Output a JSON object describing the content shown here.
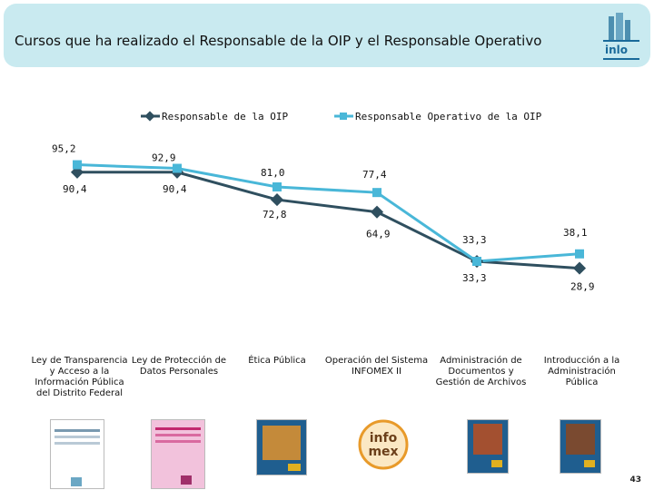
{
  "header": {
    "title": "Cursos que ha realizado el Responsable de la OIP y el Responsable Operativo",
    "logo_text": "inlo"
  },
  "colors": {
    "series1": "#2f4f5f",
    "series2": "#49b7d8",
    "header_bg": "#c9eaf0"
  },
  "chart_data": {
    "type": "line",
    "categories": [
      "Ley de Transparencia y Acceso a la Información Pública del Distrito Federal",
      "Ley de Protección de Datos Personales",
      "Ética Pública",
      "Operación del Sistema INFOMEX II",
      "Administración de Documentos y Gestión de Archivos",
      "Introducción a la Administración Pública"
    ],
    "series": [
      {
        "name": "Responsable de la OIP",
        "values": [
          90.4,
          90.4,
          72.8,
          64.9,
          33.3,
          28.9
        ],
        "labels": [
          "90,4",
          "90,4",
          "72,8",
          "64,9",
          "33,3",
          "28,9"
        ]
      },
      {
        "name": "Responsable Operativo de la OIP",
        "values": [
          95.2,
          92.9,
          81.0,
          77.4,
          33.3,
          38.1
        ],
        "labels": [
          "95,2",
          "92,9",
          "81,0",
          "77,4",
          "33,3",
          "38,1"
        ]
      }
    ],
    "ylim": [
      0,
      100
    ]
  },
  "category_lines": [
    [
      "Ley de Transparencia",
      "y Acceso a la",
      "Información Pública",
      "del Distrito Federal"
    ],
    [
      "Ley de Protección de",
      "Datos Personales"
    ],
    [
      "Ética Pública"
    ],
    [
      "Operación del Sistema",
      "INFOMEX II"
    ],
    [
      "Administración de",
      "Documentos y",
      "Gestión de Archivos"
    ],
    [
      "Introducción a la",
      "Administración",
      "Pública"
    ]
  ],
  "infomex_logo": {
    "line1": "info",
    "line2": "mex"
  },
  "page_number": "43"
}
